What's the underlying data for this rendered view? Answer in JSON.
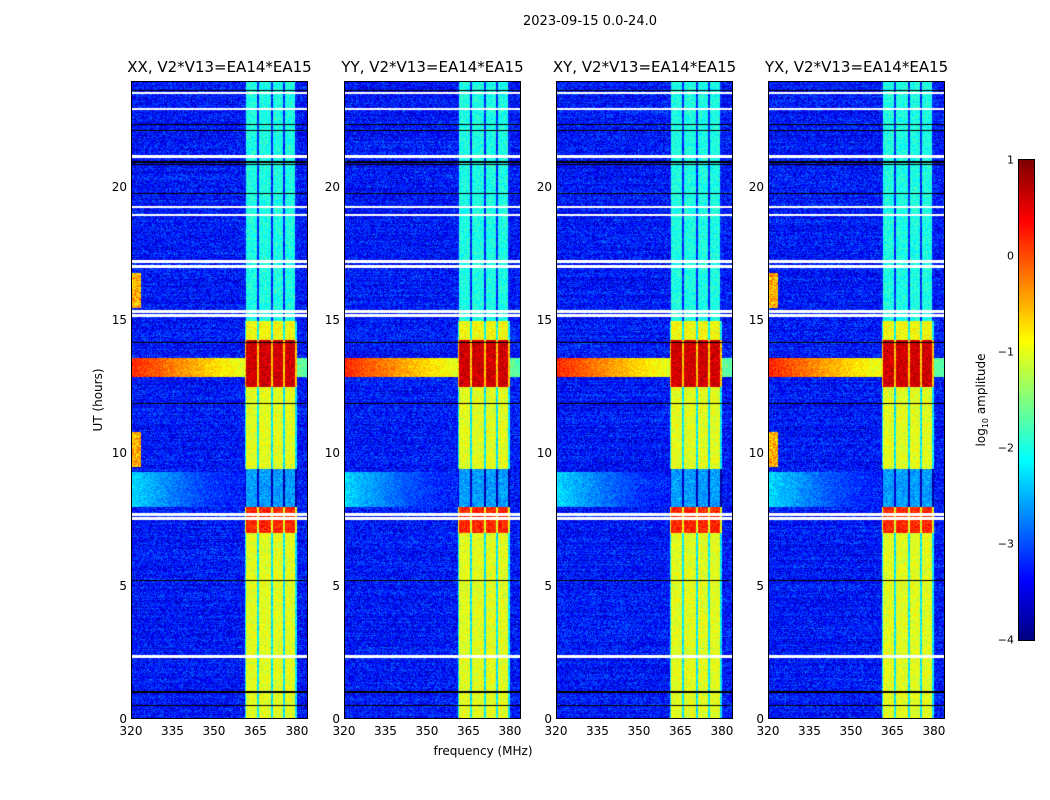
{
  "chart_data": {
    "type": "heatmap",
    "title": "2023-09-15 0.0-24.0",
    "xlabel": "frequency (MHz)",
    "ylabel": "UT (hours)",
    "xlim": [
      320,
      384
    ],
    "ylim": [
      0,
      24
    ],
    "xticks": [
      "320",
      "335",
      "350",
      "365",
      "380"
    ],
    "xtick_values": [
      320,
      335,
      350,
      365,
      380
    ],
    "yticks": [
      "0",
      "5",
      "10",
      "15",
      "20"
    ],
    "ytick_values": [
      0,
      5,
      10,
      15,
      20
    ],
    "panels": [
      {
        "title": "XX, V2*V13=EA14*EA15",
        "seed": 1,
        "left_rfi": true
      },
      {
        "title": "YY, V2*V13=EA14*EA15",
        "seed": 2,
        "left_rfi": false
      },
      {
        "title": "XY, V2*V13=EA14*EA15",
        "seed": 3,
        "left_rfi": false
      },
      {
        "title": "YX, V2*V13=EA14*EA15",
        "seed": 4,
        "left_rfi": true
      }
    ],
    "colorbar": {
      "label_prefix": "log",
      "label_sub": "10",
      "label_suffix": " amplitude",
      "range": [
        -4,
        1
      ],
      "ticks": [
        "1",
        "0",
        "−1",
        "−2",
        "−3",
        "−4"
      ],
      "tick_values": [
        1,
        0,
        -1,
        -2,
        -3,
        -4
      ],
      "colormap": "jet"
    },
    "features": {
      "background_log_amp": -3.3,
      "band_subchannels_mhz": [
        [
          361,
          366
        ],
        [
          366,
          371
        ],
        [
          371,
          375.5
        ],
        [
          375.5,
          380
        ]
      ],
      "band_levels": [
        {
          "hours": [
            0,
            7
          ],
          "level": -1.0
        },
        {
          "hours": [
            7,
            8
          ],
          "level": 0.2
        },
        {
          "hours": [
            8,
            9.4
          ],
          "level": -2.6
        },
        {
          "hours": [
            9.4,
            12.5
          ],
          "level": -1.0
        },
        {
          "hours": [
            12.5,
            14.3
          ],
          "level": 0.6
        },
        {
          "hours": [
            14.3,
            15
          ],
          "level": -0.9
        },
        {
          "hours": [
            15,
            24
          ],
          "level": -2.0
        }
      ],
      "broadband_rfi": [
        {
          "hours": [
            12.9,
            13.6
          ],
          "level": 0.2
        },
        {
          "hours": [
            8.0,
            9.3
          ],
          "level": -2.3
        }
      ],
      "flagged_white_hours": [
        2.35,
        7.55,
        7.7,
        15.2,
        15.35,
        17.05,
        17.25,
        19.0,
        19.3,
        21.2,
        23.0,
        23.6
      ],
      "black_line_hours": [
        0.5,
        1.0,
        5.2,
        11.9,
        14.2,
        19.8,
        20.9,
        21.0,
        22.2,
        22.4,
        23.7
      ]
    }
  }
}
